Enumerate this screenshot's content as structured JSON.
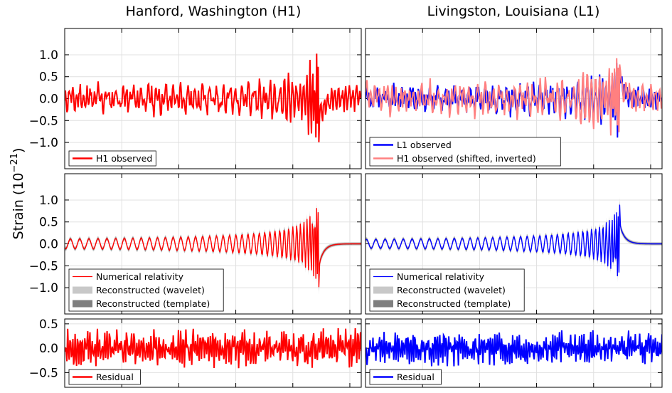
{
  "chart_data": {
    "type": "line",
    "ylabel": "Strain (10",
    "ylabel_exp": "−21",
    "ylabel_close": ")",
    "columns": [
      {
        "title": "Hanford, Washington (H1)"
      },
      {
        "title": "Livingston, Louisiana (L1)"
      }
    ],
    "colors": {
      "h1": "#ff0000",
      "l1": "#0000ff",
      "h1_shifted": "#ff8080",
      "wavelet": "#c8c8c8",
      "template": "#7f7f7f"
    },
    "grid": true,
    "x_ticks_count": 5,
    "rows": [
      {
        "ylim": [
          -1.6,
          1.6
        ],
        "yticks": [
          1.0,
          0.5,
          0.0,
          -0.5,
          -1.0
        ],
        "yticklabels": [
          "1.0",
          "0.5",
          "0.0",
          "−0.5",
          "−1.0"
        ],
        "panels": [
          {
            "series": [
              {
                "name": "H1 observed",
                "color": "#ff0000",
                "key": "h1obs"
              }
            ],
            "legend": [
              "H1 observed"
            ]
          },
          {
            "series": [
              {
                "name": "L1 observed",
                "color": "#0000ff",
                "key": "l1obs"
              },
              {
                "name": "H1 observed (shifted, inverted)",
                "color": "#ff8080",
                "key": "h1shift"
              }
            ],
            "legend": [
              "L1 observed",
              "H1 observed (shifted, inverted)"
            ]
          }
        ]
      },
      {
        "ylim": [
          -1.6,
          1.6
        ],
        "yticks": [
          1.0,
          0.5,
          0.0,
          -0.5,
          -1.0
        ],
        "yticklabels": [
          "1.0",
          "0.5",
          "0.0",
          "−0.5",
          "−1.0"
        ],
        "panels": [
          {
            "series": [
              {
                "name": "Numerical relativity",
                "color": "#ff0000",
                "key": "nrH"
              },
              {
                "name": "Reconstructed (wavelet)",
                "color": "#c8c8c8",
                "key": "wav"
              },
              {
                "name": "Reconstructed (template)",
                "color": "#7f7f7f",
                "key": "tpl"
              }
            ],
            "legend": [
              "Numerical relativity",
              "Reconstructed (wavelet)",
              "Reconstructed (template)"
            ]
          },
          {
            "series": [
              {
                "name": "Numerical relativity",
                "color": "#0000ff",
                "key": "nrL"
              },
              {
                "name": "Reconstructed (wavelet)",
                "color": "#c8c8c8",
                "key": "wav"
              },
              {
                "name": "Reconstructed (template)",
                "color": "#7f7f7f",
                "key": "tpl"
              }
            ],
            "legend": [
              "Numerical relativity",
              "Reconstructed (wavelet)",
              "Reconstructed (template)"
            ]
          }
        ]
      },
      {
        "ylim": [
          -0.8,
          0.6
        ],
        "yticks": [
          0.5,
          0.0,
          -0.5
        ],
        "yticklabels": [
          "0.5",
          "0.0",
          "−0.5"
        ],
        "panels": [
          {
            "series": [
              {
                "name": "Residual",
                "color": "#ff0000",
                "key": "resH"
              }
            ],
            "legend": [
              "Residual"
            ]
          },
          {
            "series": [
              {
                "name": "Residual",
                "color": "#0000ff",
                "key": "resL"
              }
            ],
            "legend": [
              "Residual"
            ]
          }
        ]
      }
    ]
  }
}
